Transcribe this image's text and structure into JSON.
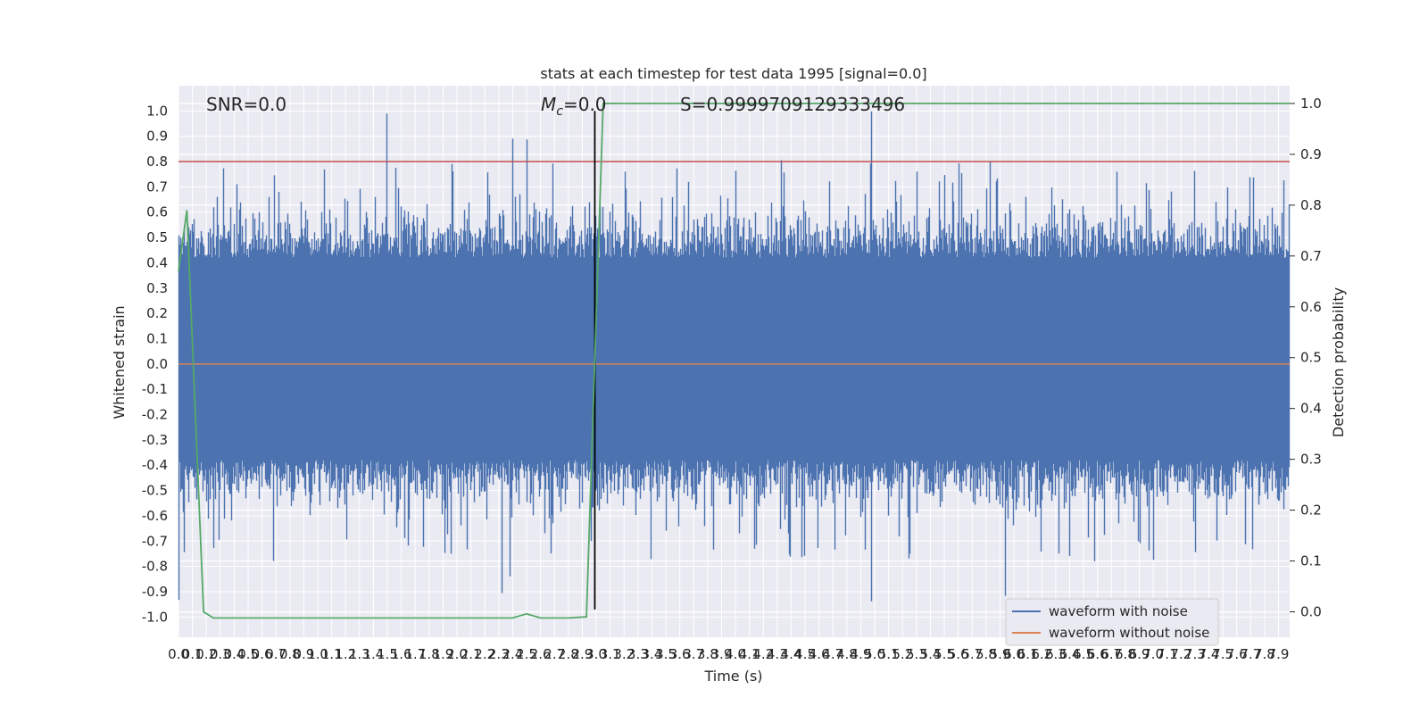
{
  "chart_data": {
    "type": "line",
    "title": "stats at each timestep for test data 1995 [signal=0.0]",
    "xlabel": "Time (s)",
    "ylabel_left": "Whitened strain",
    "ylabel_right": "Detection probability",
    "xlim": [
      0.0,
      7.98
    ],
    "ylim_left": [
      -1.08,
      1.1
    ],
    "ylim_right": [
      -0.05,
      1.035
    ],
    "x_ticks": [
      "0.0",
      "0.1",
      "0.2",
      "0.3",
      "0.4",
      "0.5",
      "0.6",
      "0.7",
      "0.8",
      "0.9",
      "1.0",
      "1.1",
      "1.2",
      "1.3",
      "1.4",
      "1.5",
      "1.6",
      "1.7",
      "1.8",
      "1.9",
      "2.0",
      "2.1",
      "2.2",
      "2.3",
      "2.4",
      "2.5",
      "2.6",
      "2.7",
      "2.8",
      "2.9",
      "3.0",
      "3.1",
      "3.2",
      "3.3",
      "3.4",
      "3.5",
      "3.6",
      "3.7",
      "3.8",
      "3.9",
      "4.0",
      "4.1",
      "4.2",
      "4.3",
      "4.4",
      "4.5",
      "4.6",
      "4.7",
      "4.8",
      "4.9",
      "5.0",
      "5.1",
      "5.2",
      "5.3",
      "5.4",
      "5.5",
      "5.6",
      "5.7",
      "5.8",
      "5.9",
      "6.0",
      "6.1",
      "6.2",
      "6.3",
      "6.4",
      "6.5",
      "6.6",
      "6.7",
      "6.8",
      "6.9",
      "7.0",
      "7.1",
      "7.2",
      "7.3",
      "7.4",
      "7.5",
      "7.6",
      "7.7",
      "7.8",
      "7.9"
    ],
    "y_ticks_left": [
      "-1.0",
      "-0.9",
      "-0.8",
      "-0.7",
      "-0.6",
      "-0.5",
      "-0.4",
      "-0.3",
      "-0.2",
      "-0.1",
      "0.0",
      "0.1",
      "0.2",
      "0.3",
      "0.4",
      "0.5",
      "0.6",
      "0.7",
      "0.8",
      "0.9",
      "1.0"
    ],
    "y_ticks_right": [
      "0.0",
      "0.1",
      "0.2",
      "0.3",
      "0.4",
      "0.5",
      "0.6",
      "0.7",
      "0.8",
      "0.9",
      "1.0"
    ],
    "annotations": {
      "snr": "SNR=0.0",
      "mc_symbol": "M",
      "mc_sub": "c",
      "mc_value": "=0.0",
      "s": "S=0.9999709129333496"
    },
    "threshold_left": 0.8,
    "event_time": 2.99,
    "legend_placement": "lower-right",
    "series": [
      {
        "name": "waveform with noise",
        "color": "#4c72b0",
        "noise_envelope": "dense noise approximately between -0.5 and 0.6, spikes up to 1.0 and down to -0.97"
      },
      {
        "name": "waveform without noise",
        "color": "#dd8452",
        "values": "flat at 0.0"
      },
      {
        "name": "",
        "color": "#55a868",
        "axis": "right",
        "x": [
          0.0,
          0.06,
          0.18,
          0.25,
          2.4,
          2.5,
          2.6,
          2.8,
          2.93,
          2.99,
          3.05,
          7.98
        ],
        "values": [
          0.67,
          0.79,
          0.0,
          -0.012,
          -0.012,
          -0.004,
          -0.012,
          -0.012,
          -0.01,
          0.5,
          1.0,
          1.0
        ]
      }
    ],
    "colors": {
      "plot_background": "#eaeaf2",
      "grid": "#ffffff",
      "threshold": "#c44e52",
      "event_line": "#000000"
    }
  }
}
